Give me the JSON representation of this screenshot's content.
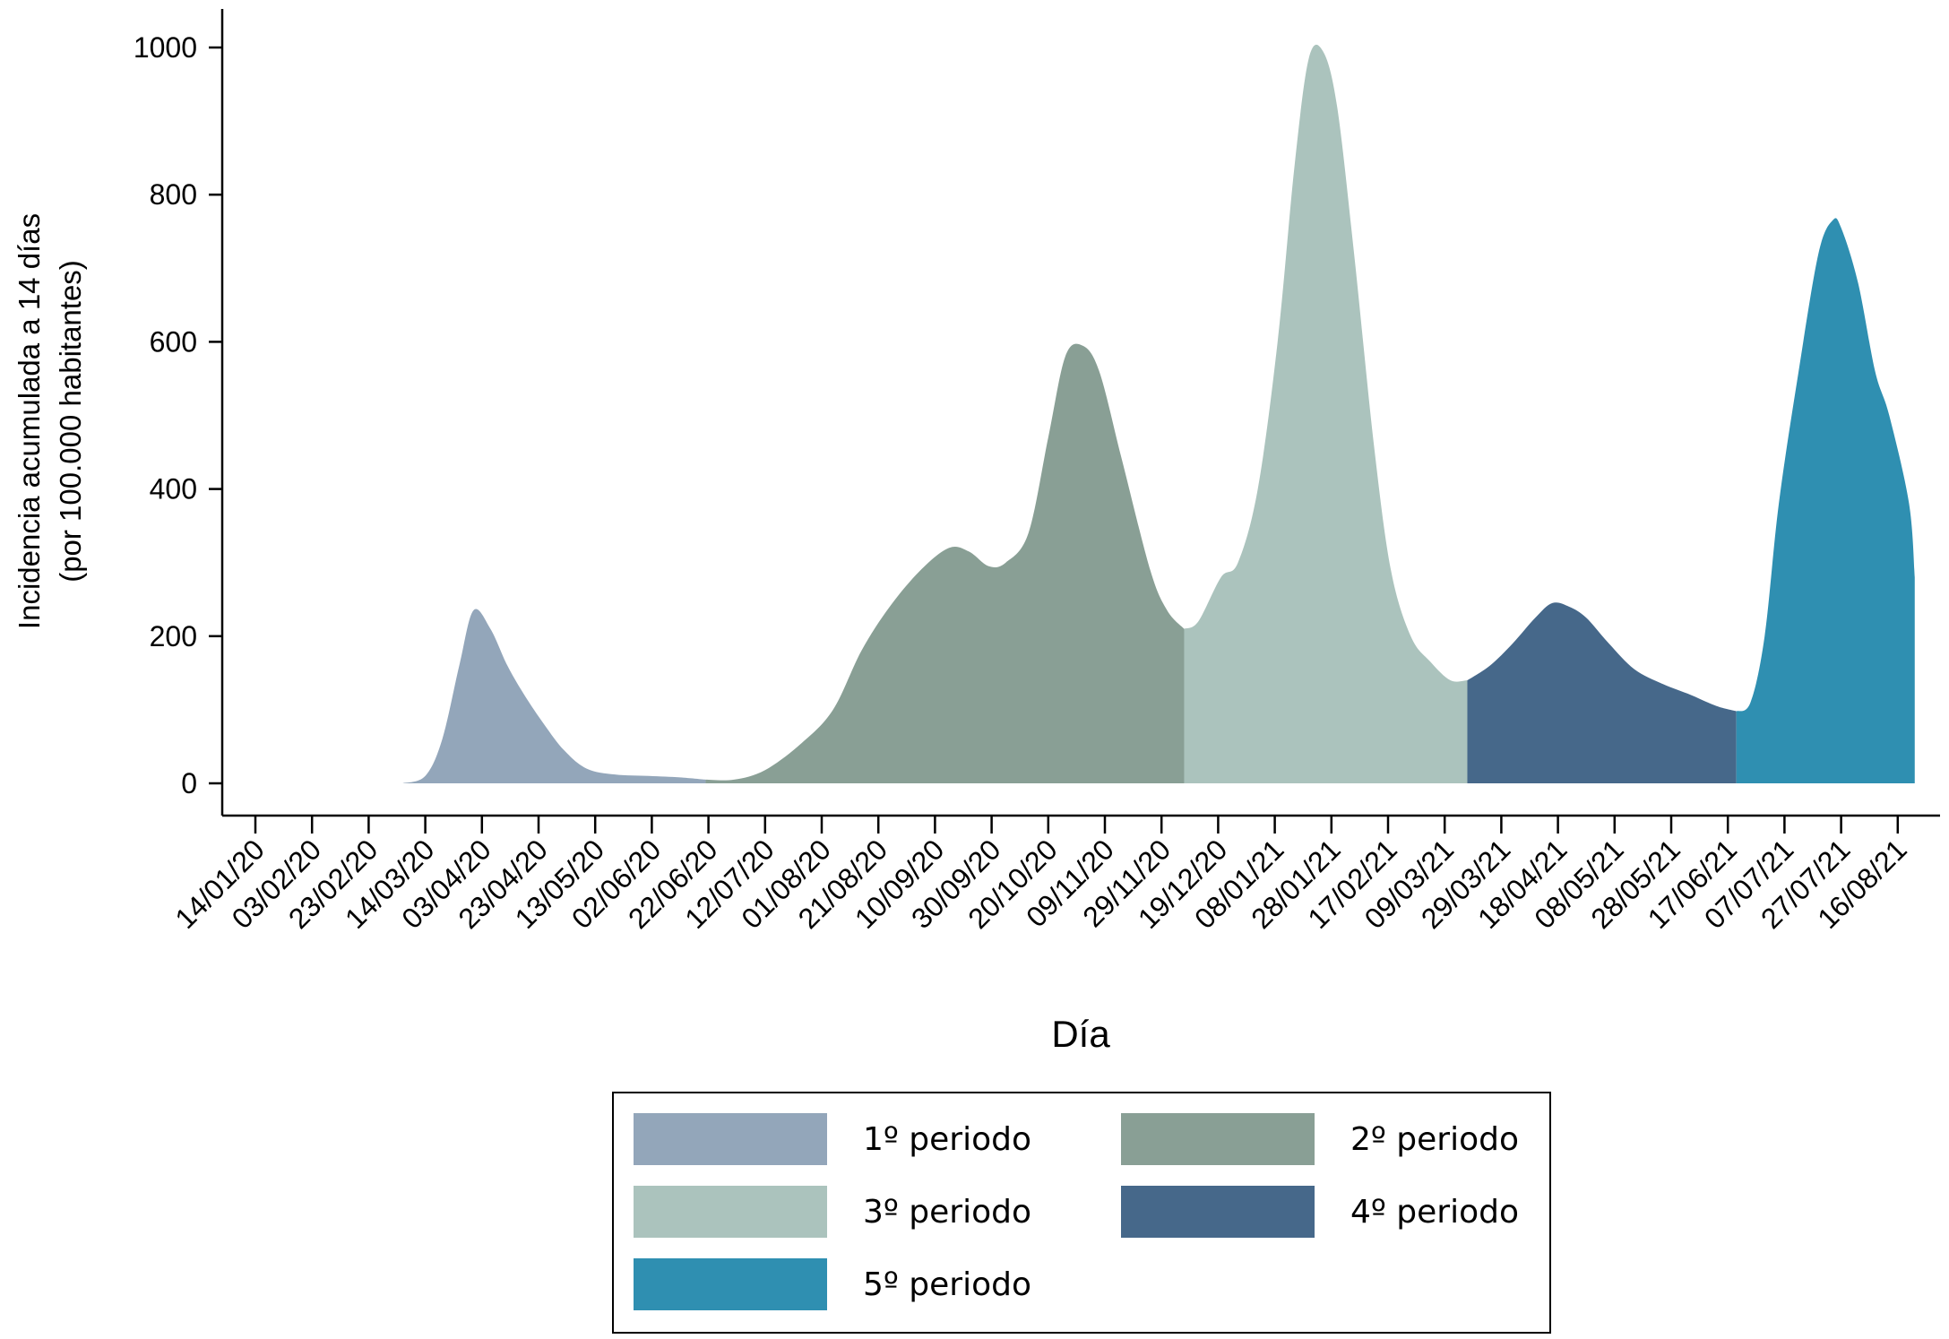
{
  "chart_data": {
    "type": "area",
    "xlabel": "Día",
    "ylabel": "Incidencia acumulada a 14 días",
    "ylabel_line2": "(por 100.000 habitantes)",
    "ylim": [
      0,
      1000
    ],
    "yticks": [
      0,
      200,
      400,
      600,
      800,
      1000
    ],
    "grid": false,
    "legend_placement": "bottom",
    "xticks": [
      "14/01/20",
      "03/02/20",
      "23/02/20",
      "14/03/20",
      "03/04/20",
      "23/04/20",
      "13/05/20",
      "02/06/20",
      "22/06/20",
      "12/07/20",
      "01/08/20",
      "21/08/20",
      "10/09/20",
      "30/09/20",
      "20/10/20",
      "09/11/20",
      "29/11/20",
      "19/12/20",
      "08/01/21",
      "28/01/21",
      "17/02/21",
      "09/03/21",
      "29/03/21",
      "18/04/21",
      "08/05/21",
      "28/05/21",
      "17/06/21",
      "07/07/21",
      "27/07/21",
      "16/08/21"
    ],
    "series": [
      {
        "name": "1º periodo",
        "color": "#93a6ba",
        "x": [
          "2020-03-06",
          "2020-03-14",
          "2020-03-20",
          "2020-03-26",
          "2020-03-31",
          "2020-04-06",
          "2020-04-12",
          "2020-04-18",
          "2020-04-25",
          "2020-05-02",
          "2020-05-10",
          "2020-05-20",
          "2020-06-01",
          "2020-06-12",
          "2020-06-21"
        ],
        "y": [
          0,
          10,
          60,
          160,
          235,
          210,
          160,
          120,
          80,
          45,
          20,
          12,
          10,
          8,
          5
        ]
      },
      {
        "name": "2º periodo",
        "color": "#899f95",
        "x": [
          "2020-06-21",
          "2020-07-01",
          "2020-07-12",
          "2020-07-25",
          "2020-08-05",
          "2020-08-15",
          "2020-08-25",
          "2020-09-05",
          "2020-09-15",
          "2020-09-22",
          "2020-09-29",
          "2020-10-05",
          "2020-10-13",
          "2020-10-20",
          "2020-10-26",
          "2020-11-01",
          "2020-11-07",
          "2020-11-15",
          "2020-11-25",
          "2020-12-01",
          "2020-12-07"
        ],
        "y": [
          5,
          5,
          18,
          55,
          100,
          180,
          240,
          290,
          320,
          315,
          295,
          300,
          340,
          470,
          580,
          595,
          560,
          440,
          290,
          235,
          210
        ]
      },
      {
        "name": "3º periodo",
        "color": "#abc3bd",
        "x": [
          "2020-12-07",
          "2020-12-12",
          "2020-12-20",
          "2020-12-26",
          "2021-01-02",
          "2021-01-09",
          "2021-01-15",
          "2021-01-20",
          "2021-01-25",
          "2021-01-30",
          "2021-02-05",
          "2021-02-12",
          "2021-02-18",
          "2021-02-25",
          "2021-03-04",
          "2021-03-11",
          "2021-03-17"
        ],
        "y": [
          210,
          220,
          280,
          300,
          400,
          600,
          840,
          985,
          995,
          920,
          720,
          460,
          290,
          200,
          165,
          140,
          140
        ]
      },
      {
        "name": "4º periodo",
        "color": "#46688a",
        "x": [
          "2021-03-17",
          "2021-03-25",
          "2021-04-02",
          "2021-04-10",
          "2021-04-16",
          "2021-04-22",
          "2021-04-28",
          "2021-05-06",
          "2021-05-15",
          "2021-05-25",
          "2021-06-04",
          "2021-06-13",
          "2021-06-20"
        ],
        "y": [
          140,
          160,
          190,
          225,
          245,
          240,
          225,
          190,
          155,
          135,
          120,
          105,
          98
        ]
      },
      {
        "name": "5º periodo",
        "color": "#2f8fb1",
        "x": [
          "2021-06-20",
          "2021-06-25",
          "2021-06-30",
          "2021-07-05",
          "2021-07-12",
          "2021-07-19",
          "2021-07-24",
          "2021-07-27",
          "2021-08-02",
          "2021-08-08",
          "2021-08-13",
          "2021-08-20",
          "2021-08-22"
        ],
        "y": [
          98,
          110,
          200,
          380,
          560,
          720,
          765,
          755,
          680,
          560,
          500,
          380,
          280
        ]
      }
    ]
  }
}
